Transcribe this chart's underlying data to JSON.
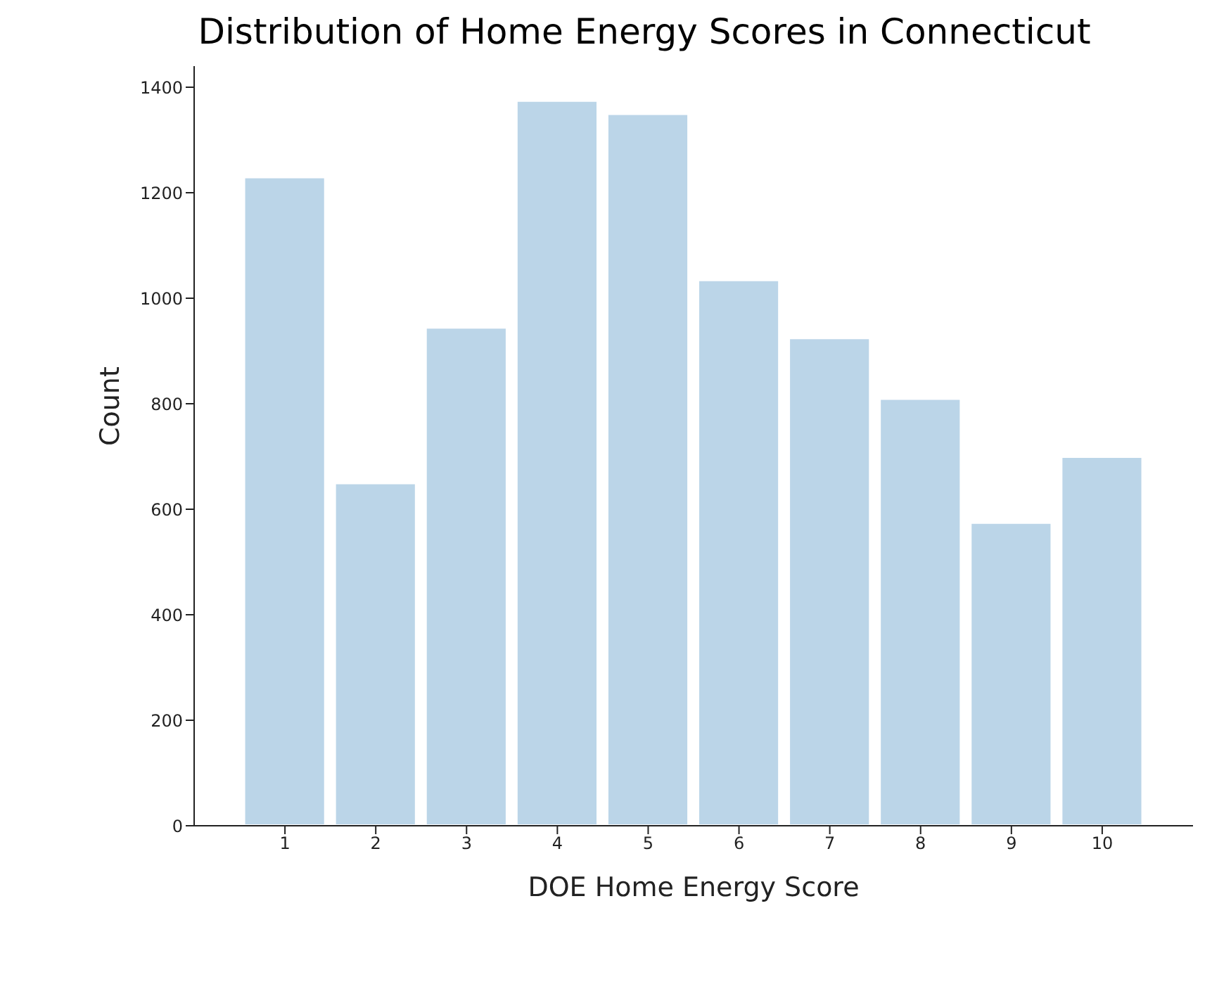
{
  "chart_data": {
    "type": "histogram",
    "title": "Distribution of Home Energy Scores in Connecticut",
    "xlabel": "DOE Home Energy Score",
    "ylabel": "Count",
    "bins": [
      0.5,
      1.5,
      2.5,
      3.5,
      4.5,
      5.5,
      6.5,
      7.5,
      8.5,
      9.5,
      10.5
    ],
    "values": [
      1230,
      650,
      945,
      1375,
      1350,
      1035,
      925,
      810,
      575,
      700
    ],
    "color": "#bbd5e8",
    "xlim": [
      0,
      11
    ],
    "xticks": [
      1,
      2,
      3,
      4,
      5,
      6,
      7,
      8,
      9,
      10
    ],
    "ylim": [
      0,
      1440
    ],
    "yticks": [
      0,
      200,
      400,
      600,
      800,
      1000,
      1200,
      1400
    ],
    "grid": false
  }
}
